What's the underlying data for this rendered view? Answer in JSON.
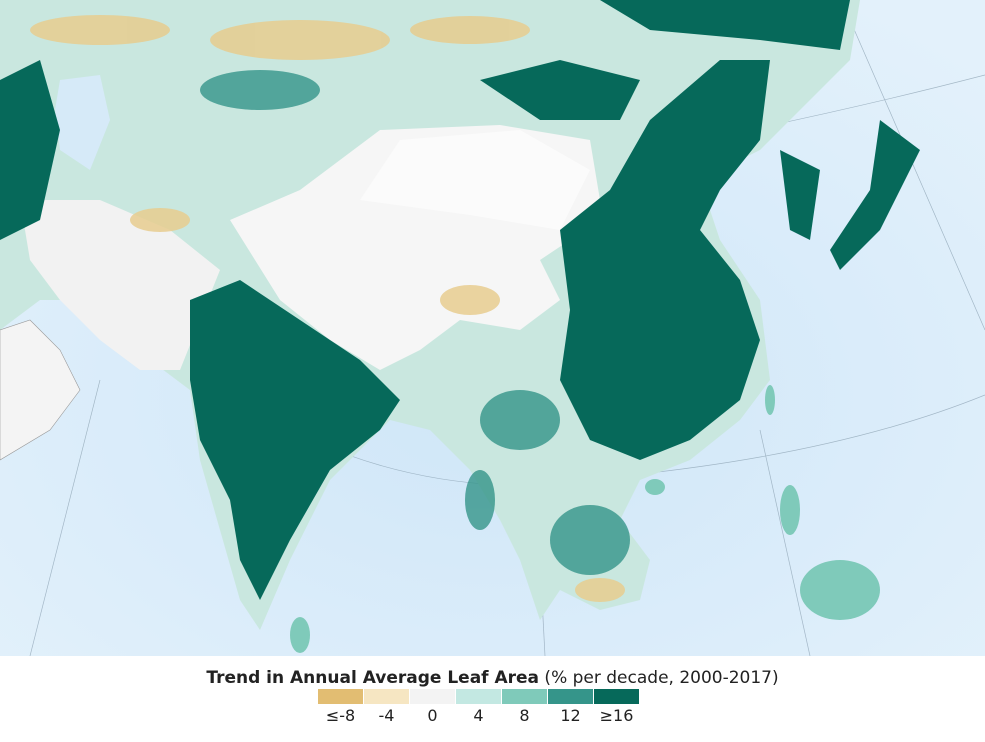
{
  "legend": {
    "title_bold": "Trend in Annual Average Leaf Area",
    "title_rest": " (% per decade, 2000-2017)",
    "bins": [
      {
        "label": "≤-8",
        "color": "#e2bd72"
      },
      {
        "label": "-4",
        "color": "#f6e6c2"
      },
      {
        "label": "0",
        "color": "#f3f3f3"
      },
      {
        "label": "4",
        "color": "#c3e8e2"
      },
      {
        "label": "8",
        "color": "#7fcaba"
      },
      {
        "label": "12",
        "color": "#35958a"
      },
      {
        "label": "≥16",
        "color": "#06695a"
      }
    ]
  },
  "map": {
    "ocean_color": "#d6eaf8",
    "region": "Asia"
  }
}
